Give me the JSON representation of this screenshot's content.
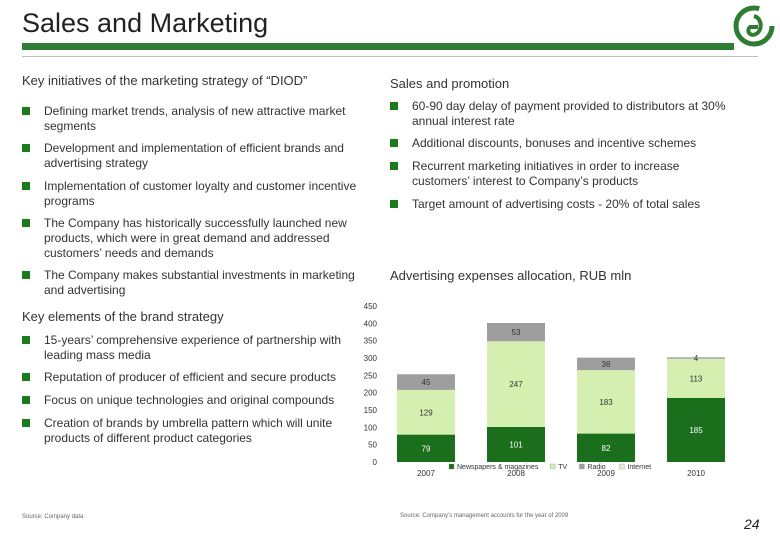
{
  "header": {
    "title": "Sales and Marketing"
  },
  "left": {
    "initiatives": {
      "heading": "Key initiatives of the marketing strategy of “DIOD”",
      "items": [
        "Defining market trends, analysis of new attractive market segments",
        "Development and implementation of efficient brands and advertising strategy",
        "Implementation of customer loyalty and customer incentive programs",
        "The Company has historically successfully launched new products, which were in great demand and addressed customers’ needs and demands",
        "The Company makes substantial investments in marketing and advertising"
      ]
    },
    "brand": {
      "heading": "Key elements of the brand strategy",
      "items": [
        "15-years’ comprehensive experience of partnership with leading mass media",
        "Reputation of producer of efficient and secure products",
        "Focus on unique technologies and original compounds",
        "Creation of brands by umbrella pattern which will unite products of different  product categories"
      ]
    },
    "source": "Source: Company data"
  },
  "right": {
    "promotion": {
      "heading": "Sales and promotion",
      "items": [
        "60-90 day delay of payment provided to distributors at 30% annual interest rate",
        "Additional discounts, bonuses and incentive schemes",
        "Recurrent marketing initiatives in order to increase customers’ interest to Company’s products",
        "Target amount of advertising costs  - 20% of total sales"
      ]
    },
    "chart_heading": "Advertising expenses allocation, RUB mln",
    "source": "Source: Company’s management accounts for the year of 2009"
  },
  "page_number": "24",
  "colors": {
    "brand_green": "#2e7d32",
    "bullet_green": "#1b7a1b"
  },
  "chart_data": {
    "type": "bar",
    "stacked": true,
    "categories": [
      "2007",
      "2008",
      "2009",
      "2010"
    ],
    "series": [
      {
        "name": "Newspapers & magazines",
        "color": "#1b6e1b",
        "values": [
          79,
          101,
          82,
          185
        ]
      },
      {
        "name": "TV",
        "color": "#d4efb0",
        "values": [
          129,
          247,
          183,
          113
        ]
      },
      {
        "name": "Radio",
        "color": "#9e9e9e",
        "values": [
          45,
          53,
          36,
          4
        ]
      },
      {
        "name": "Internet",
        "color": "#e8e8d8",
        "values": [
          0,
          0,
          0,
          0
        ]
      }
    ],
    "ylim": [
      0,
      450
    ],
    "yticks": [
      0,
      50,
      100,
      150,
      200,
      250,
      300,
      350,
      400,
      450
    ],
    "legend_position": "bottom"
  }
}
